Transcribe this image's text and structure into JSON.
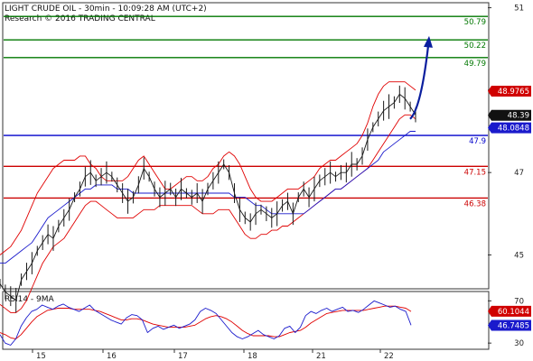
{
  "header": {
    "title": "LIGHT CRUDE OIL - 30min - 10:09:28 AM (UTC+2)",
    "source": "Research © 2016 TRADING CENTRAL"
  },
  "colors": {
    "price": "#1a1a1a",
    "bollinger": "#e00000",
    "ma": "#1a1acc",
    "support": "#cc0000",
    "resistance": "#007700",
    "pivot": "#0000cc",
    "arrow": "#0a1e9e",
    "rsi": "#1a1acc",
    "rsi_ma": "#e00000"
  },
  "chart_data": [
    {
      "type": "line",
      "panel": "price",
      "ylim": [
        44.2,
        51.1
      ],
      "y_ticks": [
        {
          "value": 45,
          "label": "45"
        },
        {
          "value": 47,
          "label": "47"
        },
        {
          "value": 49,
          "label": "49"
        },
        {
          "value": 51,
          "label": "51"
        }
      ],
      "x_ticks": [
        "15",
        "16",
        "17",
        "18",
        "21",
        "22"
      ],
      "levels": [
        {
          "value": 50.79,
          "label": "50.79",
          "role": "resistance"
        },
        {
          "value": 50.22,
          "label": "50.22",
          "role": "resistance"
        },
        {
          "value": 49.79,
          "label": "49.79",
          "role": "resistance"
        },
        {
          "value": 47.9,
          "label": "47.9",
          "role": "pivot"
        },
        {
          "value": 47.15,
          "label": "47.15",
          "role": "support"
        },
        {
          "value": 46.38,
          "label": "46.38",
          "role": "support"
        }
      ],
      "badges": [
        {
          "value": 48.9765,
          "label": "48.9765",
          "color": "#d00000"
        },
        {
          "value": 48.39,
          "label": "48.39",
          "color": "#111111"
        },
        {
          "value": 48.0848,
          "label": "48.0848",
          "color": "#1a1acc"
        }
      ],
      "forecast_arrow": {
        "from_x": 454,
        "from_y": 48.3,
        "to_x": 475,
        "to_y": 50.27
      },
      "series_x": [
        0,
        460
      ],
      "price": [
        44.3,
        44.1,
        44.0,
        43.9,
        44.4,
        44.6,
        44.8,
        45.1,
        45.3,
        45.5,
        45.4,
        45.7,
        45.9,
        46.1,
        46.4,
        46.6,
        46.9,
        47.0,
        46.8,
        46.9,
        47.0,
        46.9,
        46.7,
        46.5,
        46.3,
        46.4,
        46.7,
        47.1,
        46.9,
        46.6,
        46.4,
        46.5,
        46.6,
        46.4,
        46.6,
        46.5,
        46.4,
        46.5,
        46.3,
        46.6,
        46.8,
        47.0,
        47.2,
        47.0,
        46.5,
        46.1,
        45.9,
        45.8,
        46.0,
        46.1,
        46.0,
        45.9,
        46.0,
        46.2,
        46.3,
        46.0,
        46.4,
        46.6,
        46.4,
        46.6,
        46.8,
        46.9,
        47.0,
        46.9,
        47.0,
        47.0,
        47.2,
        47.2,
        47.4,
        47.8,
        48.1,
        48.3,
        48.5,
        48.6,
        48.7,
        48.9,
        48.8,
        48.6,
        48.4
      ],
      "bb_upper": [
        45.0,
        45.1,
        45.2,
        45.4,
        45.6,
        45.9,
        46.2,
        46.5,
        46.7,
        46.9,
        47.1,
        47.2,
        47.3,
        47.3,
        47.3,
        47.4,
        47.4,
        47.2,
        47.1,
        46.9,
        46.8,
        46.8,
        46.8,
        46.8,
        46.9,
        47.1,
        47.3,
        47.4,
        47.2,
        47.0,
        46.8,
        46.6,
        46.6,
        46.7,
        46.8,
        46.9,
        46.9,
        46.8,
        46.8,
        46.9,
        47.1,
        47.2,
        47.4,
        47.5,
        47.4,
        47.2,
        46.9,
        46.6,
        46.4,
        46.3,
        46.3,
        46.3,
        46.4,
        46.5,
        46.6,
        46.6,
        46.6,
        46.7,
        46.8,
        46.9,
        47.1,
        47.2,
        47.3,
        47.3,
        47.4,
        47.5,
        47.6,
        47.7,
        47.9,
        48.2,
        48.6,
        48.9,
        49.1,
        49.2,
        49.2,
        49.2,
        49.2,
        49.1,
        49.0
      ],
      "bb_lower": [
        43.8,
        43.7,
        43.6,
        43.6,
        43.7,
        43.9,
        44.2,
        44.5,
        44.8,
        45.0,
        45.2,
        45.3,
        45.4,
        45.6,
        45.8,
        46.0,
        46.2,
        46.3,
        46.3,
        46.2,
        46.1,
        46.0,
        45.9,
        45.9,
        45.9,
        45.9,
        46.0,
        46.1,
        46.1,
        46.1,
        46.2,
        46.2,
        46.2,
        46.2,
        46.2,
        46.2,
        46.2,
        46.1,
        46.0,
        46.0,
        46.0,
        46.1,
        46.1,
        46.1,
        45.9,
        45.7,
        45.5,
        45.4,
        45.4,
        45.5,
        45.5,
        45.6,
        45.6,
        45.7,
        45.7,
        45.8,
        45.9,
        46.0,
        46.1,
        46.2,
        46.3,
        46.4,
        46.5,
        46.6,
        46.6,
        46.7,
        46.8,
        46.9,
        47.0,
        47.1,
        47.3,
        47.5,
        47.7,
        47.9,
        48.1,
        48.3,
        48.4,
        48.4,
        48.3
      ],
      "ma": [
        44.8,
        44.8,
        44.9,
        45.0,
        45.1,
        45.2,
        45.3,
        45.5,
        45.7,
        45.9,
        46.0,
        46.1,
        46.2,
        46.3,
        46.4,
        46.5,
        46.6,
        46.6,
        46.7,
        46.7,
        46.7,
        46.7,
        46.6,
        46.6,
        46.6,
        46.5,
        46.5,
        46.5,
        46.5,
        46.5,
        46.5,
        46.5,
        46.5,
        46.5,
        46.5,
        46.5,
        46.5,
        46.5,
        46.5,
        46.5,
        46.5,
        46.5,
        46.5,
        46.5,
        46.4,
        46.4,
        46.4,
        46.3,
        46.2,
        46.2,
        46.1,
        46.0,
        46.0,
        46.0,
        46.0,
        46.0,
        46.0,
        46.0,
        46.1,
        46.2,
        46.3,
        46.4,
        46.5,
        46.6,
        46.6,
        46.7,
        46.8,
        46.9,
        47.0,
        47.1,
        47.2,
        47.3,
        47.5,
        47.6,
        47.7,
        47.8,
        47.9,
        48.0,
        48.0
      ]
    },
    {
      "type": "line",
      "panel": "rsi",
      "title": "RSI14 - 9MA",
      "ylim": [
        25,
        78
      ],
      "y_ticks": [
        {
          "value": 30,
          "label": "30"
        },
        {
          "value": 70,
          "label": "70"
        }
      ],
      "badges": [
        {
          "value": 60.1044,
          "label": "60.1044",
          "color": "#d00000"
        },
        {
          "value": 46.7485,
          "label": "46.7485",
          "color": "#1a1acc"
        }
      ],
      "series_x": [
        0,
        455
      ],
      "rsi": [
        38,
        30,
        28,
        34,
        46,
        54,
        60,
        62,
        66,
        64,
        62,
        65,
        67,
        64,
        62,
        60,
        63,
        66,
        61,
        58,
        55,
        52,
        50,
        48,
        54,
        57,
        56,
        52,
        40,
        44,
        46,
        43,
        45,
        47,
        44,
        46,
        48,
        52,
        60,
        63,
        61,
        58,
        52,
        46,
        40,
        36,
        34,
        36,
        39,
        42,
        38,
        36,
        34,
        37,
        44,
        46,
        40,
        45,
        56,
        60,
        58,
        61,
        63,
        60,
        62,
        64,
        60,
        61,
        59,
        62,
        66,
        70,
        68,
        66,
        64,
        65,
        62,
        60,
        47
      ],
      "rsi_ma": [
        40,
        38,
        35,
        34,
        38,
        44,
        50,
        55,
        58,
        61,
        62,
        63,
        63,
        63,
        62,
        62,
        62,
        62,
        61,
        60,
        58,
        56,
        54,
        52,
        52,
        53,
        53,
        52,
        50,
        48,
        47,
        46,
        45,
        45,
        45,
        45,
        46,
        47,
        50,
        53,
        55,
        56,
        55,
        53,
        50,
        46,
        42,
        39,
        37,
        37,
        37,
        37,
        36,
        36,
        38,
        40,
        41,
        42,
        45,
        49,
        52,
        55,
        58,
        59,
        60,
        61,
        61,
        61,
        61,
        61,
        62,
        63,
        64,
        65,
        65,
        65,
        64,
        63,
        60
      ]
    }
  ]
}
